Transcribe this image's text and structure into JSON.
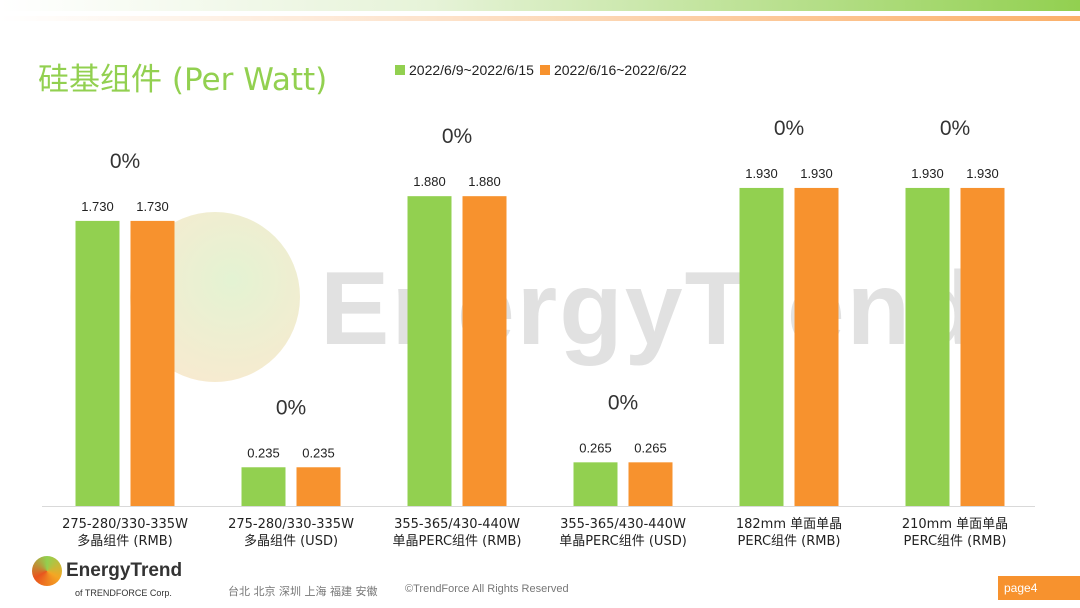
{
  "header": {
    "title": "硅基组件 (Per Watt)"
  },
  "watermark": "EnergyTrend",
  "chart_data": {
    "type": "bar",
    "title": "硅基组件 (Per Watt)",
    "categories": [
      [
        "275-280/330-335W",
        "多晶组件 (RMB)"
      ],
      [
        "275-280/330-335W",
        "多晶组件 (USD)"
      ],
      [
        "355-365/430-440W",
        "单晶PERC组件 (RMB)"
      ],
      [
        "355-365/430-440W",
        "单晶PERC组件 (USD)"
      ],
      [
        "182mm 单面单晶",
        "PERC组件 (RMB)"
      ],
      [
        "210mm 单面单晶",
        "PERC组件 (RMB)"
      ]
    ],
    "series": [
      {
        "name": "2022/6/9~2022/6/15",
        "color": "#92d050",
        "values": [
          1.73,
          0.235,
          1.88,
          0.265,
          1.93,
          1.93
        ],
        "labels": [
          "1.730",
          "0.235",
          "1.880",
          "0.265",
          "1.930",
          "1.930"
        ]
      },
      {
        "name": "2022/6/16~2022/6/22",
        "color": "#f7922e",
        "values": [
          1.73,
          0.235,
          1.88,
          0.265,
          1.93,
          1.93
        ],
        "labels": [
          "1.730",
          "0.235",
          "1.880",
          "0.265",
          "1.930",
          "1.930"
        ]
      }
    ],
    "change_labels": [
      "0%",
      "0%",
      "0%",
      "0%",
      "0%",
      "0%"
    ],
    "legend": "top",
    "ylim": [
      0,
      2.0
    ],
    "grid": false
  },
  "footer": {
    "logo": "EnergyTrend",
    "logo_sub": "of TRENDFORCE Corp.",
    "cities": "台北  北京  深圳  上海  福建  安徽",
    "copyright": "©TrendForce All Rights Reserved",
    "page": "page4"
  }
}
